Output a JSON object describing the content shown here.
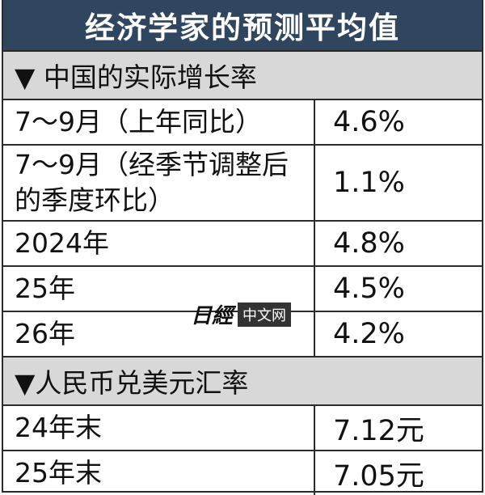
{
  "header": {
    "title": "经济学家的预测平均值"
  },
  "sections": [
    {
      "title": "▼ 中国的实际增长率",
      "rows": [
        [
          "7～9月（上年同比）",
          "4.6%"
        ],
        [
          "7～9月（经季节调整后的季度环比）",
          "1.1%"
        ],
        [
          "2024年",
          "4.8%"
        ],
        [
          "25年",
          "4.5%"
        ],
        [
          "26年",
          "4.2%"
        ]
      ]
    },
    {
      "title": "▼人民币兑美元汇率",
      "rows": [
        [
          "24年末",
          "7.12元"
        ],
        [
          "25年末",
          "7.05元"
        ]
      ]
    }
  ],
  "watermark": {
    "logo": "日經",
    "text": "中文网"
  }
}
